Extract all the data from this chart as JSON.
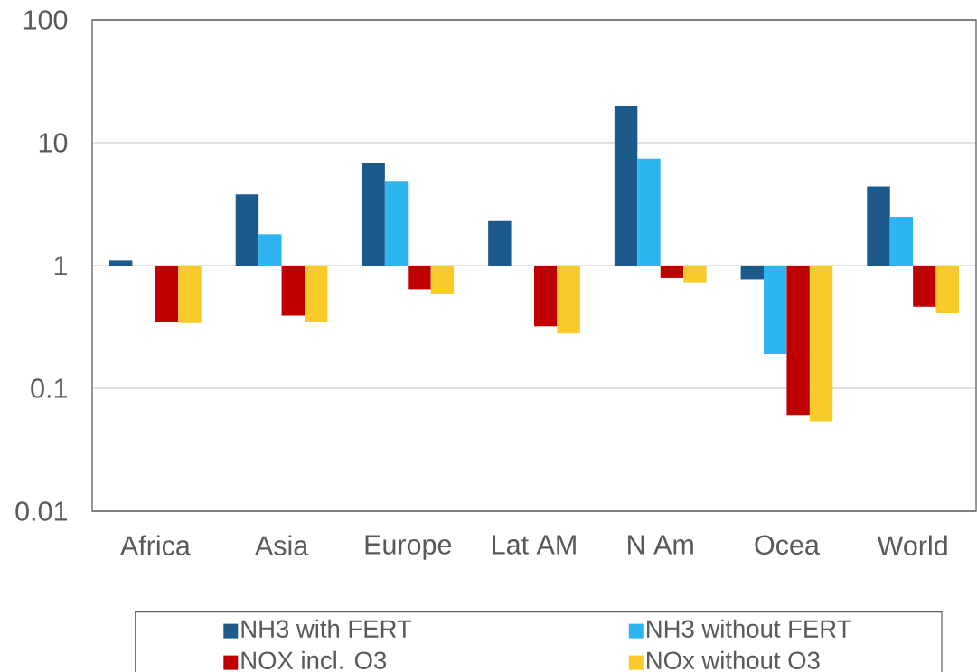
{
  "chart_data": {
    "type": "bar",
    "categories": [
      "Africa",
      "Asia",
      "Europe",
      "Lat AM",
      "N Am",
      "Ocea",
      "World"
    ],
    "series": [
      {
        "name": "NH3 with FERT",
        "color": "#1b5a8a",
        "base": [
          1,
          1,
          1,
          1,
          1,
          1,
          1
        ],
        "values": [
          0.1,
          2.8,
          5.9,
          1.3,
          19,
          -0.23,
          3.4
        ]
      },
      {
        "name": "NH3 without FERT",
        "color": "#2cb5f0",
        "base": [
          null,
          1,
          1,
          null,
          1,
          1,
          1
        ],
        "values": [
          null,
          0.8,
          3.9,
          null,
          6.4,
          -0.81,
          1.5
        ]
      },
      {
        "name": "NOX incl. O3",
        "color": "#c00000",
        "base": [
          1,
          1,
          1,
          1,
          1,
          1,
          1
        ],
        "values": [
          -0.65,
          -0.61,
          -0.36,
          -0.68,
          -0.21,
          -0.94,
          -0.54
        ]
      },
      {
        "name": "NOx without O3",
        "color": "#f8cb2a",
        "base": [
          1,
          1,
          1,
          1,
          1,
          1,
          1
        ],
        "values": [
          -0.66,
          -0.65,
          -0.41,
          -0.72,
          -0.27,
          -0.946,
          -0.59
        ]
      }
    ],
    "log": true,
    "ylim": [
      0.01,
      100
    ],
    "yticks": [
      0.01,
      0.1,
      1,
      10,
      100
    ],
    "grid": "y",
    "legend": "bottom"
  }
}
